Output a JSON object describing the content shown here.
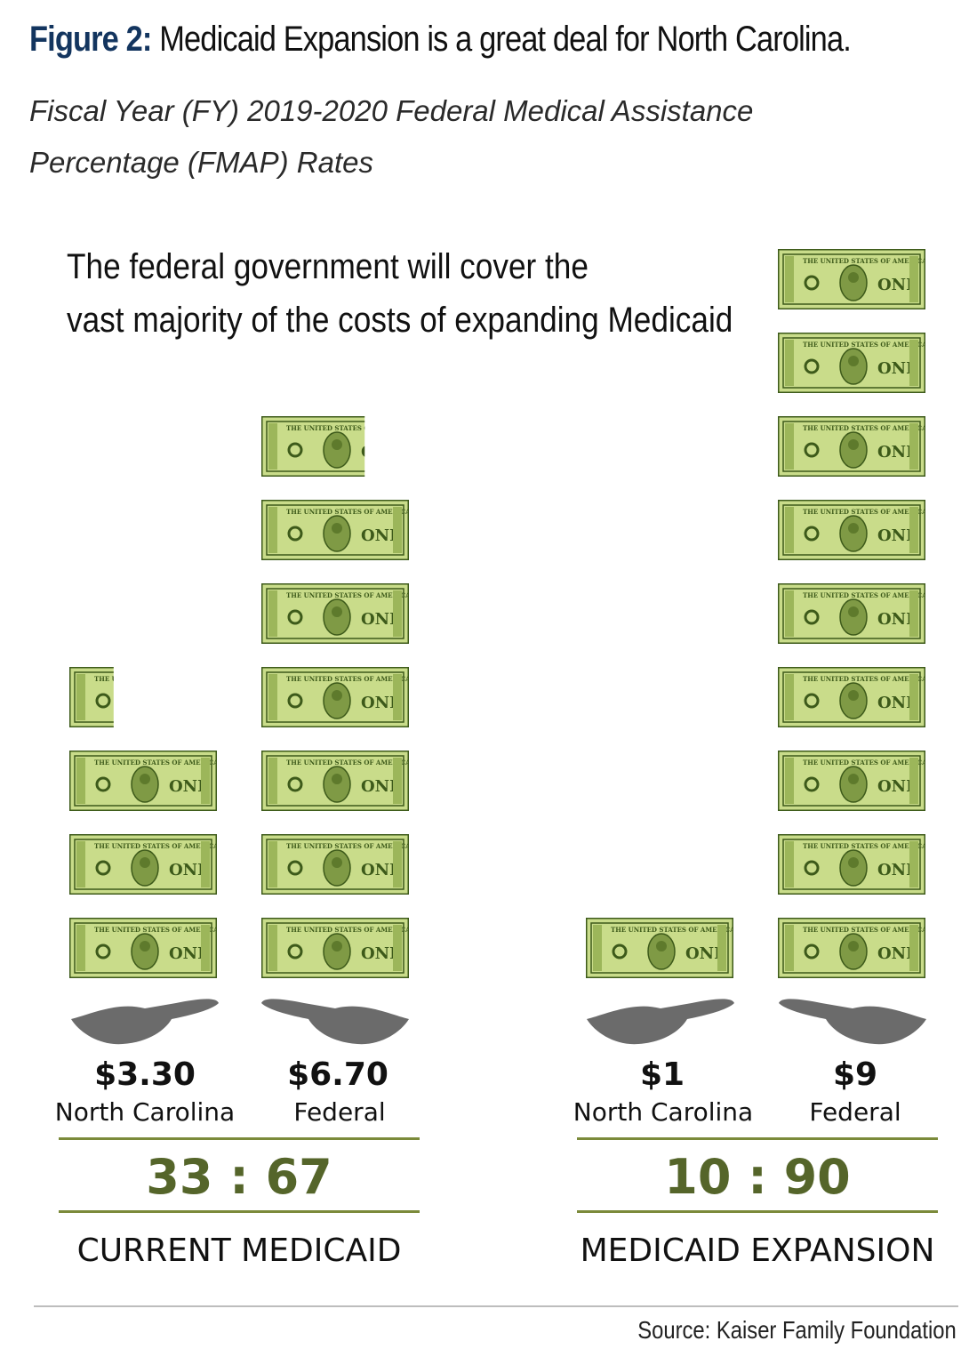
{
  "figure_label": "Figure 2:",
  "figure_title": "Medicaid Expansion is a great deal for North Carolina.",
  "subtitle": "Fiscal Year (FY) 2019-2020 Federal Medical Assistance Percentage (FMAP) Rates",
  "headline_line1": "The federal government will cover the",
  "headline_line2": "vast majority of the costs of expanding Medicaid",
  "bill_text": "THE UNITED STATES OF AMERICA",
  "bill_denomination": "ONE",
  "colors": {
    "bill_green": "#c9dc8a",
    "bill_dark": "#3d5a1a",
    "hand_gray": "#6b6b6b",
    "ratio_green": "#55652a"
  },
  "chart_data": {
    "type": "bar",
    "title": "Medicaid Expansion is a great deal for North Carolina.",
    "unit": "dollars (shown as one-dollar bills)",
    "groups": [
      {
        "name": "CURRENT MEDICAID",
        "ratio": "33 : 67",
        "bars": [
          {
            "party": "North Carolina",
            "amount_label": "$3.30",
            "value": 3.3
          },
          {
            "party": "Federal",
            "amount_label": "$6.70",
            "value": 6.7
          }
        ]
      },
      {
        "name": "MEDICAID EXPANSION",
        "ratio": "10 : 90",
        "bars": [
          {
            "party": "North Carolina",
            "amount_label": "$1",
            "value": 1
          },
          {
            "party": "Federal",
            "amount_label": "$9",
            "value": 9
          }
        ]
      }
    ]
  },
  "source": "Source: Kaiser Family Foundation"
}
